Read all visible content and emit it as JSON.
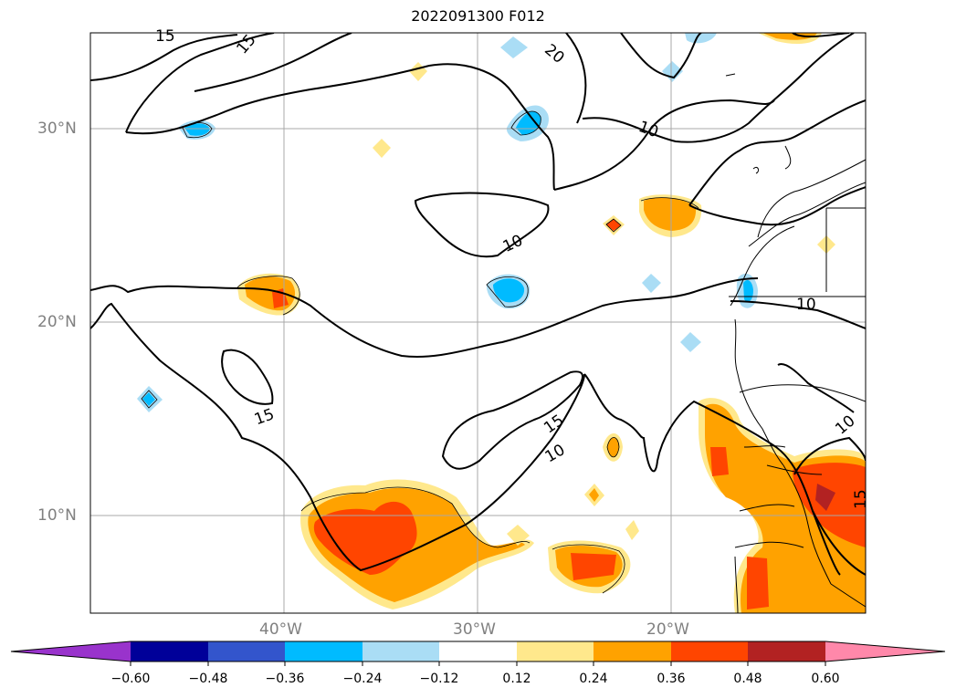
{
  "title": "2022091300 F012",
  "map": {
    "lat_labels": [
      "30°N",
      "20°N",
      "10°N"
    ],
    "lon_labels": [
      "40°W",
      "30°W",
      "20°W"
    ],
    "contour_labels": [
      "15",
      "15",
      "20",
      "10",
      "10",
      "10",
      "15",
      "15",
      "10",
      "10",
      "15"
    ]
  },
  "colorbar": {
    "colors": [
      "#9933cc",
      "#000099",
      "#3355cc",
      "#00bbff",
      "#aaddf5",
      "#ffffff",
      "#ffe88c",
      "#ffa200",
      "#ff4500",
      "#b22222",
      "#ff88aa"
    ],
    "ticks": [
      "−0.60",
      "−0.48",
      "−0.36",
      "−0.24",
      "−0.12",
      "0.12",
      "0.24",
      "0.36",
      "0.48",
      "0.60"
    ]
  }
}
